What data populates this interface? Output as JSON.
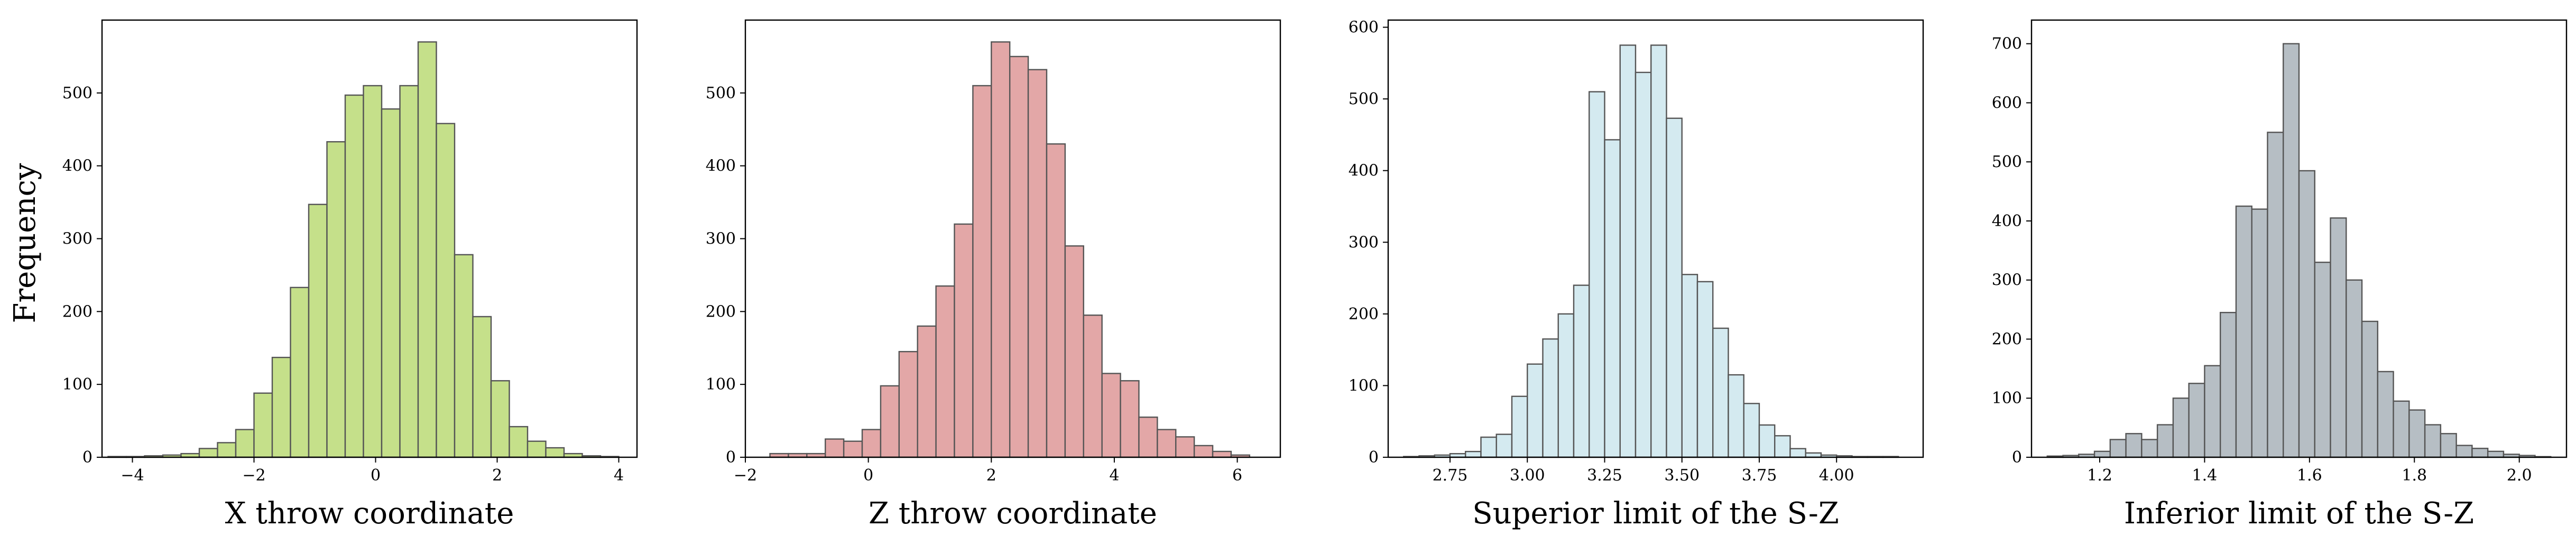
{
  "figure": {
    "ylabel": "Frequency"
  },
  "chart_data": [
    {
      "type": "bar",
      "xlabel": "X throw coordinate",
      "ylabel": "Frequency",
      "color": "#c5e08a",
      "edge_color": "#555555",
      "xlim": [
        -4.5,
        4.3
      ],
      "ylim": [
        0,
        600
      ],
      "xticks": [
        -4,
        -2,
        0,
        2,
        4
      ],
      "xtick_labels": [
        "−4",
        "−2",
        "0",
        "2",
        "4"
      ],
      "yticks": [
        0,
        100,
        200,
        300,
        400,
        500
      ],
      "ytick_labels": [
        "0",
        "100",
        "200",
        "300",
        "400",
        "500"
      ],
      "bin_edges": [
        -4.4,
        -4.1,
        -3.8,
        -3.5,
        -3.2,
        -2.9,
        -2.6,
        -2.3,
        -2.0,
        -1.7,
        -1.4,
        -1.1,
        -0.8,
        -0.5,
        -0.2,
        0.1,
        0.4,
        0.7,
        1.0,
        1.3,
        1.6,
        1.9,
        2.2,
        2.5,
        2.8,
        3.1,
        3.4,
        3.7,
        4.0
      ],
      "values": [
        1,
        1,
        2,
        3,
        5,
        12,
        20,
        38,
        88,
        137,
        233,
        347,
        433,
        497,
        510,
        478,
        510,
        570,
        458,
        278,
        193,
        105,
        42,
        22,
        13,
        5,
        2,
        1
      ]
    },
    {
      "type": "bar",
      "xlabel": "Z throw coordinate",
      "ylabel": "",
      "color": "#e3a7a7",
      "edge_color": "#555555",
      "xlim": [
        -2.0,
        6.7
      ],
      "ylim": [
        0,
        600
      ],
      "xticks": [
        -2,
        0,
        2,
        4,
        6
      ],
      "xtick_labels": [
        "−2",
        "0",
        "2",
        "4",
        "6"
      ],
      "yticks": [
        0,
        100,
        200,
        300,
        400,
        500
      ],
      "ytick_labels": [
        "0",
        "100",
        "200",
        "300",
        "400",
        "500"
      ],
      "bin_edges": [
        -1.6,
        -1.3,
        -1.0,
        -0.7,
        -0.4,
        -0.1,
        0.2,
        0.5,
        0.8,
        1.1,
        1.4,
        1.7,
        2.0,
        2.3,
        2.6,
        2.9,
        3.2,
        3.5,
        3.8,
        4.1,
        4.4,
        4.7,
        5.0,
        5.3,
        5.6,
        5.9,
        6.2
      ],
      "values": [
        5,
        5,
        5,
        25,
        22,
        38,
        98,
        145,
        180,
        235,
        320,
        510,
        570,
        550,
        532,
        430,
        290,
        195,
        115,
        105,
        55,
        38,
        28,
        16,
        8,
        3
      ]
    },
    {
      "type": "bar",
      "xlabel": "Superior limit of the S-Z",
      "ylabel": "",
      "color": "#d4eaf0",
      "edge_color": "#555555",
      "xlim": [
        2.55,
        4.28
      ],
      "ylim": [
        0,
        610
      ],
      "xticks": [
        2.75,
        3.0,
        3.25,
        3.5,
        3.75,
        4.0
      ],
      "xtick_labels": [
        "2.75",
        "3.00",
        "3.25",
        "3.50",
        "3.75",
        "4.00"
      ],
      "yticks": [
        0,
        100,
        200,
        300,
        400,
        500,
        600
      ],
      "ytick_labels": [
        "0",
        "100",
        "200",
        "300",
        "400",
        "500",
        "600"
      ],
      "bin_edges": [
        2.6,
        2.65,
        2.7,
        2.75,
        2.8,
        2.85,
        2.9,
        2.95,
        3.0,
        3.05,
        3.1,
        3.15,
        3.2,
        3.25,
        3.3,
        3.35,
        3.4,
        3.45,
        3.5,
        3.55,
        3.6,
        3.65,
        3.7,
        3.75,
        3.8,
        3.85,
        3.9,
        3.95,
        4.0,
        4.05,
        4.1,
        4.15,
        4.2
      ],
      "values": [
        1,
        2,
        3,
        5,
        8,
        28,
        32,
        85,
        130,
        165,
        200,
        240,
        510,
        443,
        575,
        537,
        575,
        473,
        255,
        245,
        180,
        115,
        75,
        45,
        30,
        12,
        6,
        3,
        2,
        1,
        1,
        1
      ]
    },
    {
      "type": "bar",
      "xlabel": "Inferior limit of the S-Z",
      "ylabel": "",
      "color": "#b6bec4",
      "edge_color": "#555555",
      "xlim": [
        1.07,
        2.09
      ],
      "ylim": [
        0,
        740
      ],
      "xticks": [
        1.2,
        1.4,
        1.6,
        1.8,
        2.0
      ],
      "xtick_labels": [
        "1.2",
        "1.4",
        "1.6",
        "1.8",
        "2.0"
      ],
      "yticks": [
        0,
        100,
        200,
        300,
        400,
        500,
        600,
        700
      ],
      "ytick_labels": [
        "0",
        "100",
        "200",
        "300",
        "400",
        "500",
        "600",
        "700"
      ],
      "bin_edges": [
        1.1,
        1.13,
        1.16,
        1.19,
        1.22,
        1.25,
        1.28,
        1.31,
        1.34,
        1.37,
        1.4,
        1.43,
        1.46,
        1.49,
        1.52,
        1.55,
        1.58,
        1.61,
        1.64,
        1.67,
        1.7,
        1.73,
        1.76,
        1.79,
        1.82,
        1.85,
        1.88,
        1.91,
        1.94,
        1.97,
        2.0,
        2.03,
        2.06
      ],
      "values": [
        2,
        3,
        5,
        10,
        30,
        40,
        30,
        55,
        100,
        125,
        155,
        245,
        425,
        420,
        550,
        700,
        485,
        330,
        405,
        300,
        230,
        145,
        95,
        80,
        55,
        40,
        20,
        15,
        10,
        5,
        3,
        1
      ]
    }
  ]
}
